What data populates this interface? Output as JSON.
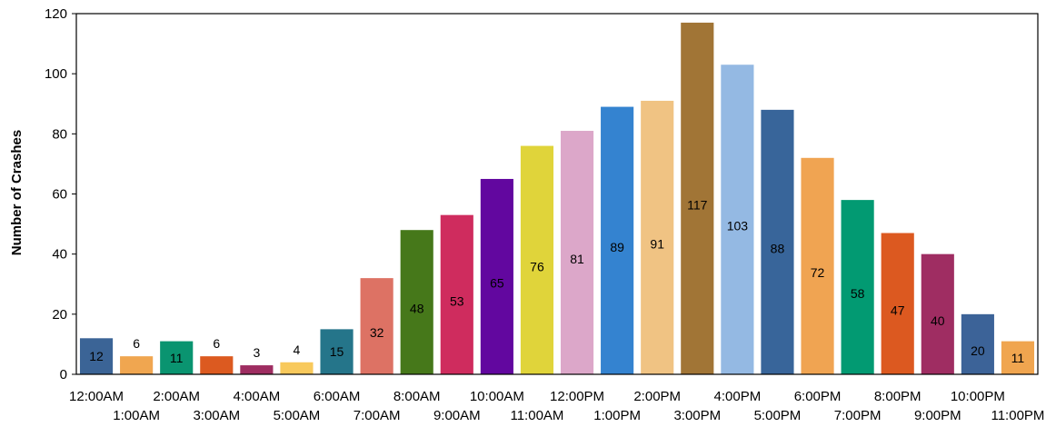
{
  "chart_data": {
    "type": "bar",
    "title": "",
    "xlabel": "",
    "ylabel": "Number of Crashes",
    "ylim": [
      0,
      120
    ],
    "yticks": [
      0,
      20,
      40,
      60,
      80,
      100,
      120
    ],
    "grid": false,
    "legend": "none",
    "categories": [
      "12:00AM",
      "1:00AM",
      "2:00AM",
      "3:00AM",
      "4:00AM",
      "5:00AM",
      "6:00AM",
      "7:00AM",
      "8:00AM",
      "9:00AM",
      "10:00AM",
      "11:00AM",
      "12:00PM",
      "1:00PM",
      "2:00PM",
      "3:00PM",
      "4:00PM",
      "5:00PM",
      "6:00PM",
      "7:00PM",
      "8:00PM",
      "9:00PM",
      "10:00PM",
      "11:00PM"
    ],
    "values": [
      12,
      6,
      11,
      6,
      3,
      4,
      15,
      32,
      48,
      53,
      65,
      76,
      81,
      89,
      91,
      117,
      103,
      88,
      72,
      58,
      47,
      40,
      20,
      11
    ],
    "colors": [
      "#3b6496",
      "#f0a650",
      "#0a9470",
      "#dc5a20",
      "#9e2d61",
      "#f8c95c",
      "#25758a",
      "#dd7264",
      "#46781a",
      "#cf2c5e",
      "#62079f",
      "#e0d43a",
      "#dca7c9",
      "#3483d0",
      "#f0c383",
      "#a17536",
      "#94b9e3",
      "#38659a",
      "#f0a452",
      "#029a72",
      "#dc5920",
      "#9f2d62",
      "#3c6398",
      "#f0a54f"
    ]
  }
}
